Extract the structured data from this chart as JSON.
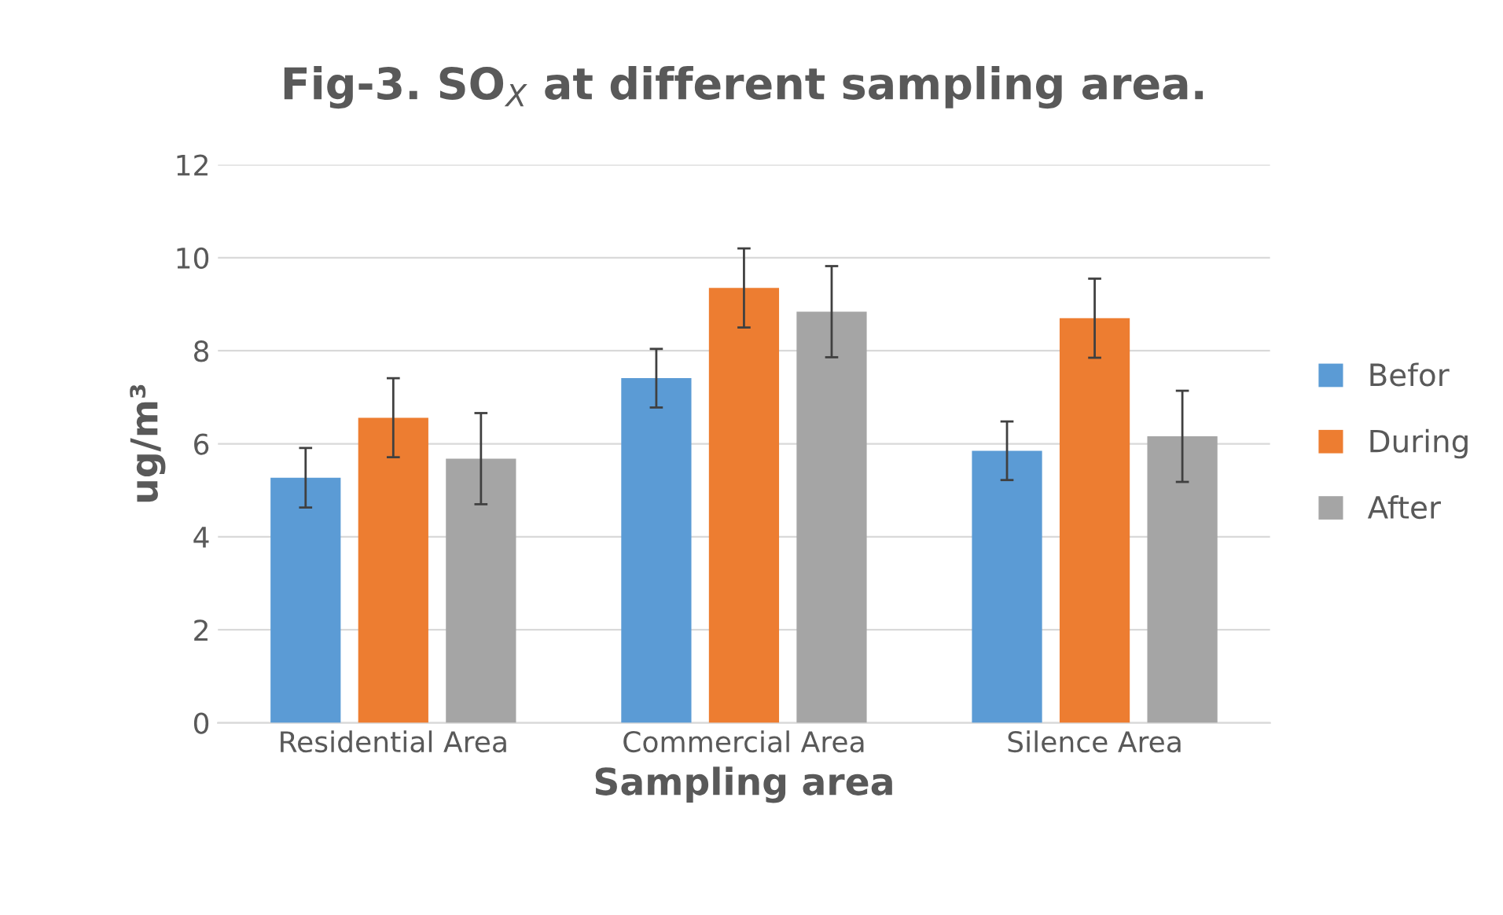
{
  "chart_data": {
    "type": "bar",
    "title": "Fig-3. SO$_{X}$ at different sampling area.",
    "xlabel": "Sampling area",
    "ylabel": "ug/m³",
    "categories": [
      "Residential Area",
      "Commercial Area",
      "Silence Area"
    ],
    "series": [
      {
        "name": "Befor",
        "color": "#5b9bd5",
        "values": [
          5.27,
          7.41,
          5.85
        ],
        "errors": [
          0.64,
          0.63,
          0.63
        ]
      },
      {
        "name": "During",
        "color": "#ed7d31",
        "values": [
          6.56,
          9.35,
          8.7
        ],
        "errors": [
          0.85,
          0.85,
          0.85
        ]
      },
      {
        "name": "After",
        "color": "#a5a5a5",
        "values": [
          5.68,
          8.84,
          6.16
        ],
        "errors": [
          0.98,
          0.98,
          0.98
        ]
      }
    ],
    "ylim": [
      0,
      12
    ],
    "yticks": [
      0,
      2,
      4,
      6,
      8,
      10,
      12
    ],
    "grid": "y",
    "legend": "right"
  }
}
